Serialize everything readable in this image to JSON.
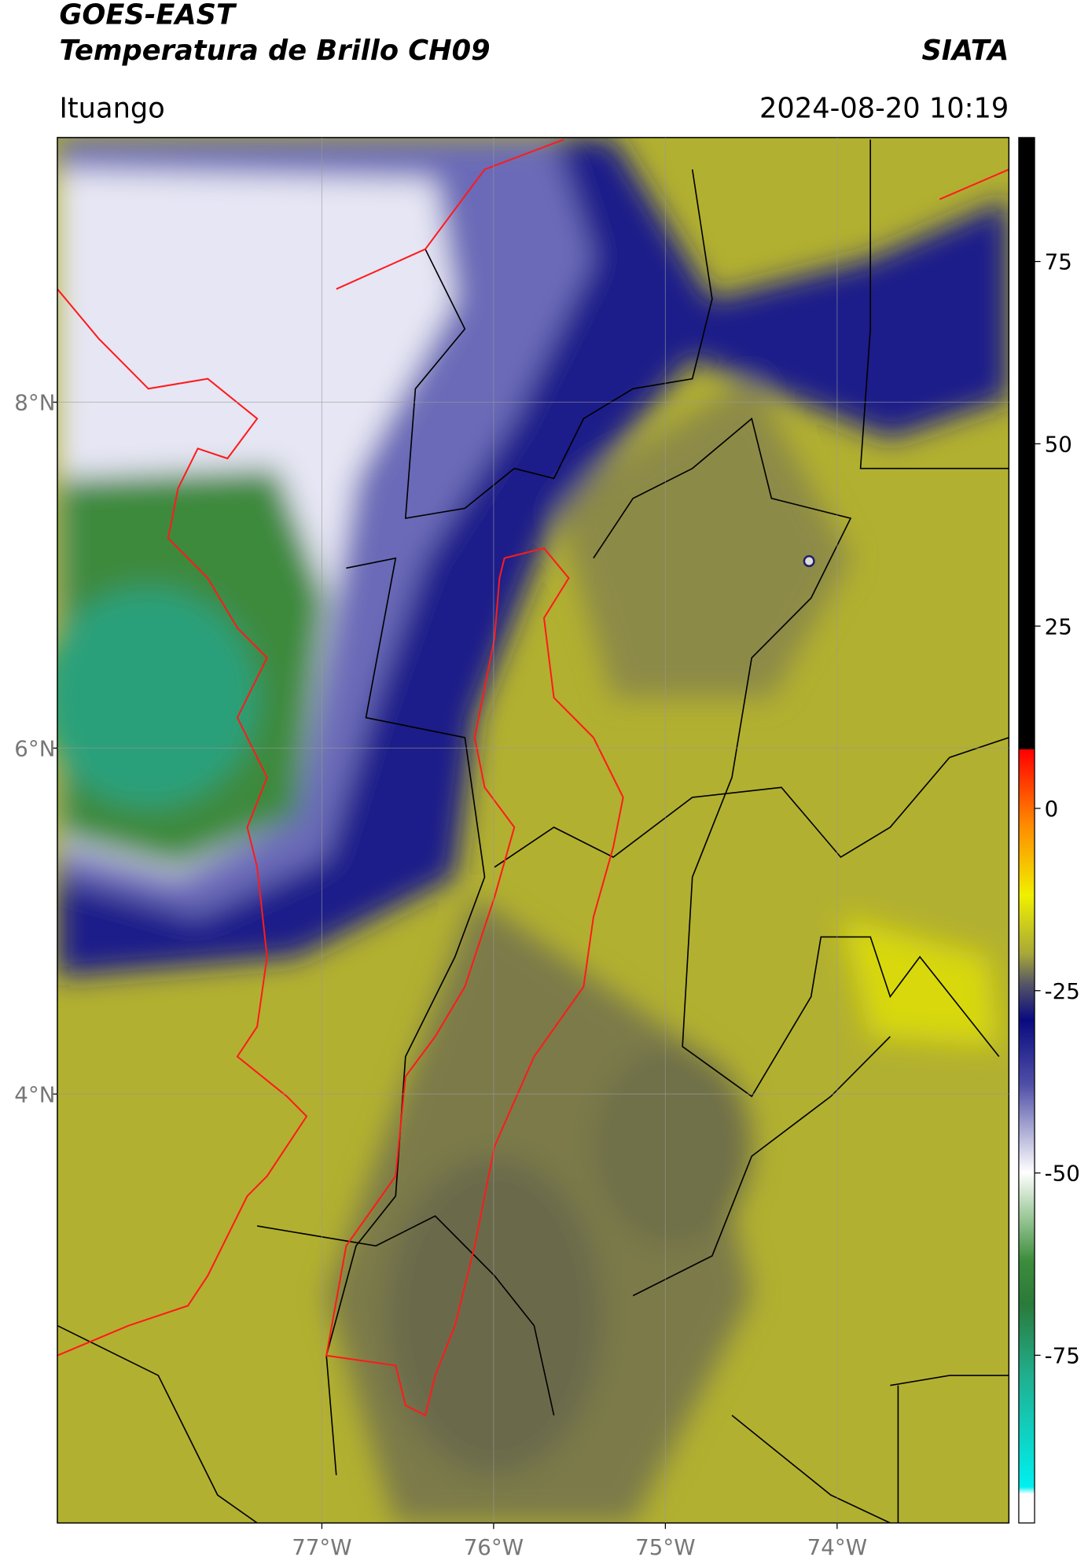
{
  "header": {
    "title_line1": "GOES-EAST",
    "title_line2": "Temperatura de Brillo CH09",
    "source": "SIATA",
    "location": "Ituango",
    "datetime": "2024-08-20 10:19"
  },
  "map": {
    "xlim": [
      -78.54,
      -73.0
    ],
    "ylim": [
      1.52,
      9.53
    ],
    "xticks": [
      {
        "value": -77,
        "label": "77°W"
      },
      {
        "value": -76,
        "label": "76°W"
      },
      {
        "value": -75,
        "label": "75°W"
      },
      {
        "value": -74,
        "label": "74°W"
      }
    ],
    "yticks": [
      {
        "value": 8,
        "label": "8°N"
      },
      {
        "value": 6,
        "label": "6°N"
      },
      {
        "value": 4,
        "label": "4°N"
      }
    ]
  },
  "colorbar": {
    "lim": [
      -98,
      92
    ],
    "ticks": [
      75,
      50,
      25,
      0,
      -25,
      -50,
      -75
    ]
  }
}
